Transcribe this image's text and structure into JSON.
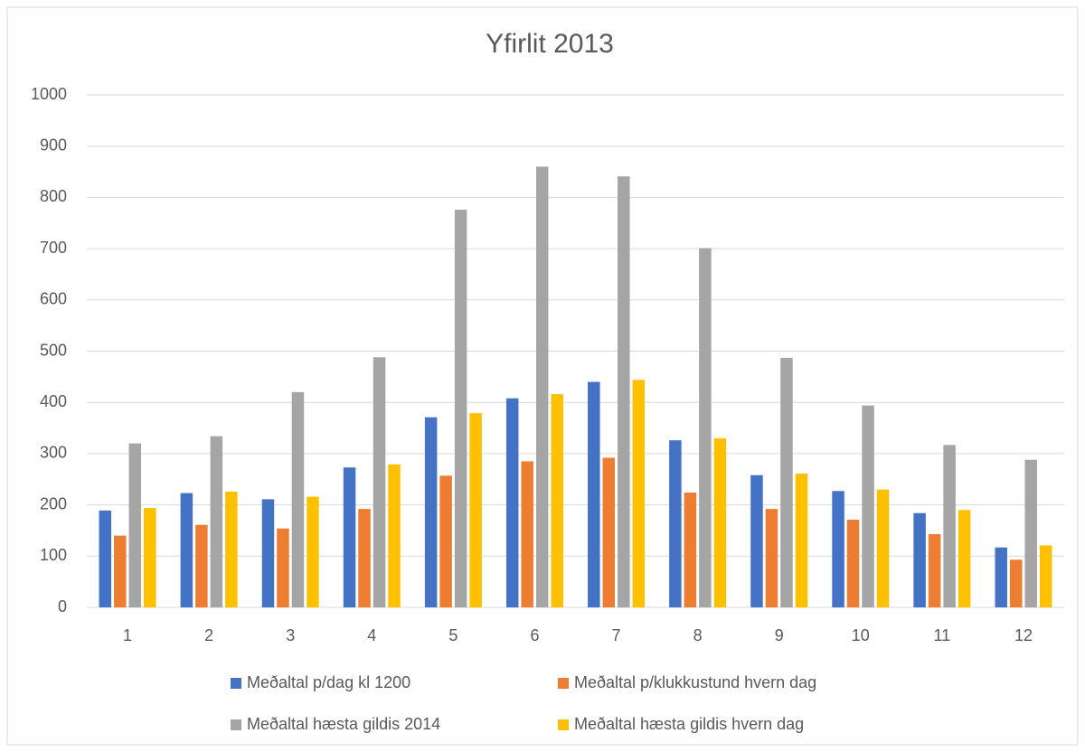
{
  "chart_data": {
    "type": "bar",
    "title": "Yfirlit 2013",
    "categories": [
      "1",
      "2",
      "3",
      "4",
      "5",
      "6",
      "7",
      "8",
      "9",
      "10",
      "11",
      "12"
    ],
    "series": [
      {
        "name": "Meðaltal p/dag kl 1200",
        "color": "#4472c4",
        "values": [
          189,
          223,
          211,
          273,
          371,
          408,
          440,
          326,
          258,
          227,
          184,
          117
        ]
      },
      {
        "name": "Meðaltal p/klukkustund hvern dag",
        "color": "#ed7d31",
        "values": [
          140,
          161,
          154,
          192,
          257,
          285,
          292,
          224,
          192,
          171,
          143,
          93
        ]
      },
      {
        "name": "Meðaltal hæsta gildis 2014",
        "color": "#a5a5a5",
        "values": [
          320,
          334,
          420,
          488,
          776,
          860,
          841,
          701,
          487,
          394,
          317,
          288
        ]
      },
      {
        "name": "Meðaltal hæsta gildis hvern dag",
        "color": "#ffc000",
        "values": [
          194,
          226,
          216,
          279,
          379,
          416,
          444,
          330,
          261,
          230,
          190,
          121
        ]
      }
    ],
    "ylim": [
      0,
      1000
    ],
    "yticks": [
      0,
      100,
      200,
      300,
      400,
      500,
      600,
      700,
      800,
      900,
      1000
    ],
    "grid": true,
    "legend": "bottom"
  }
}
